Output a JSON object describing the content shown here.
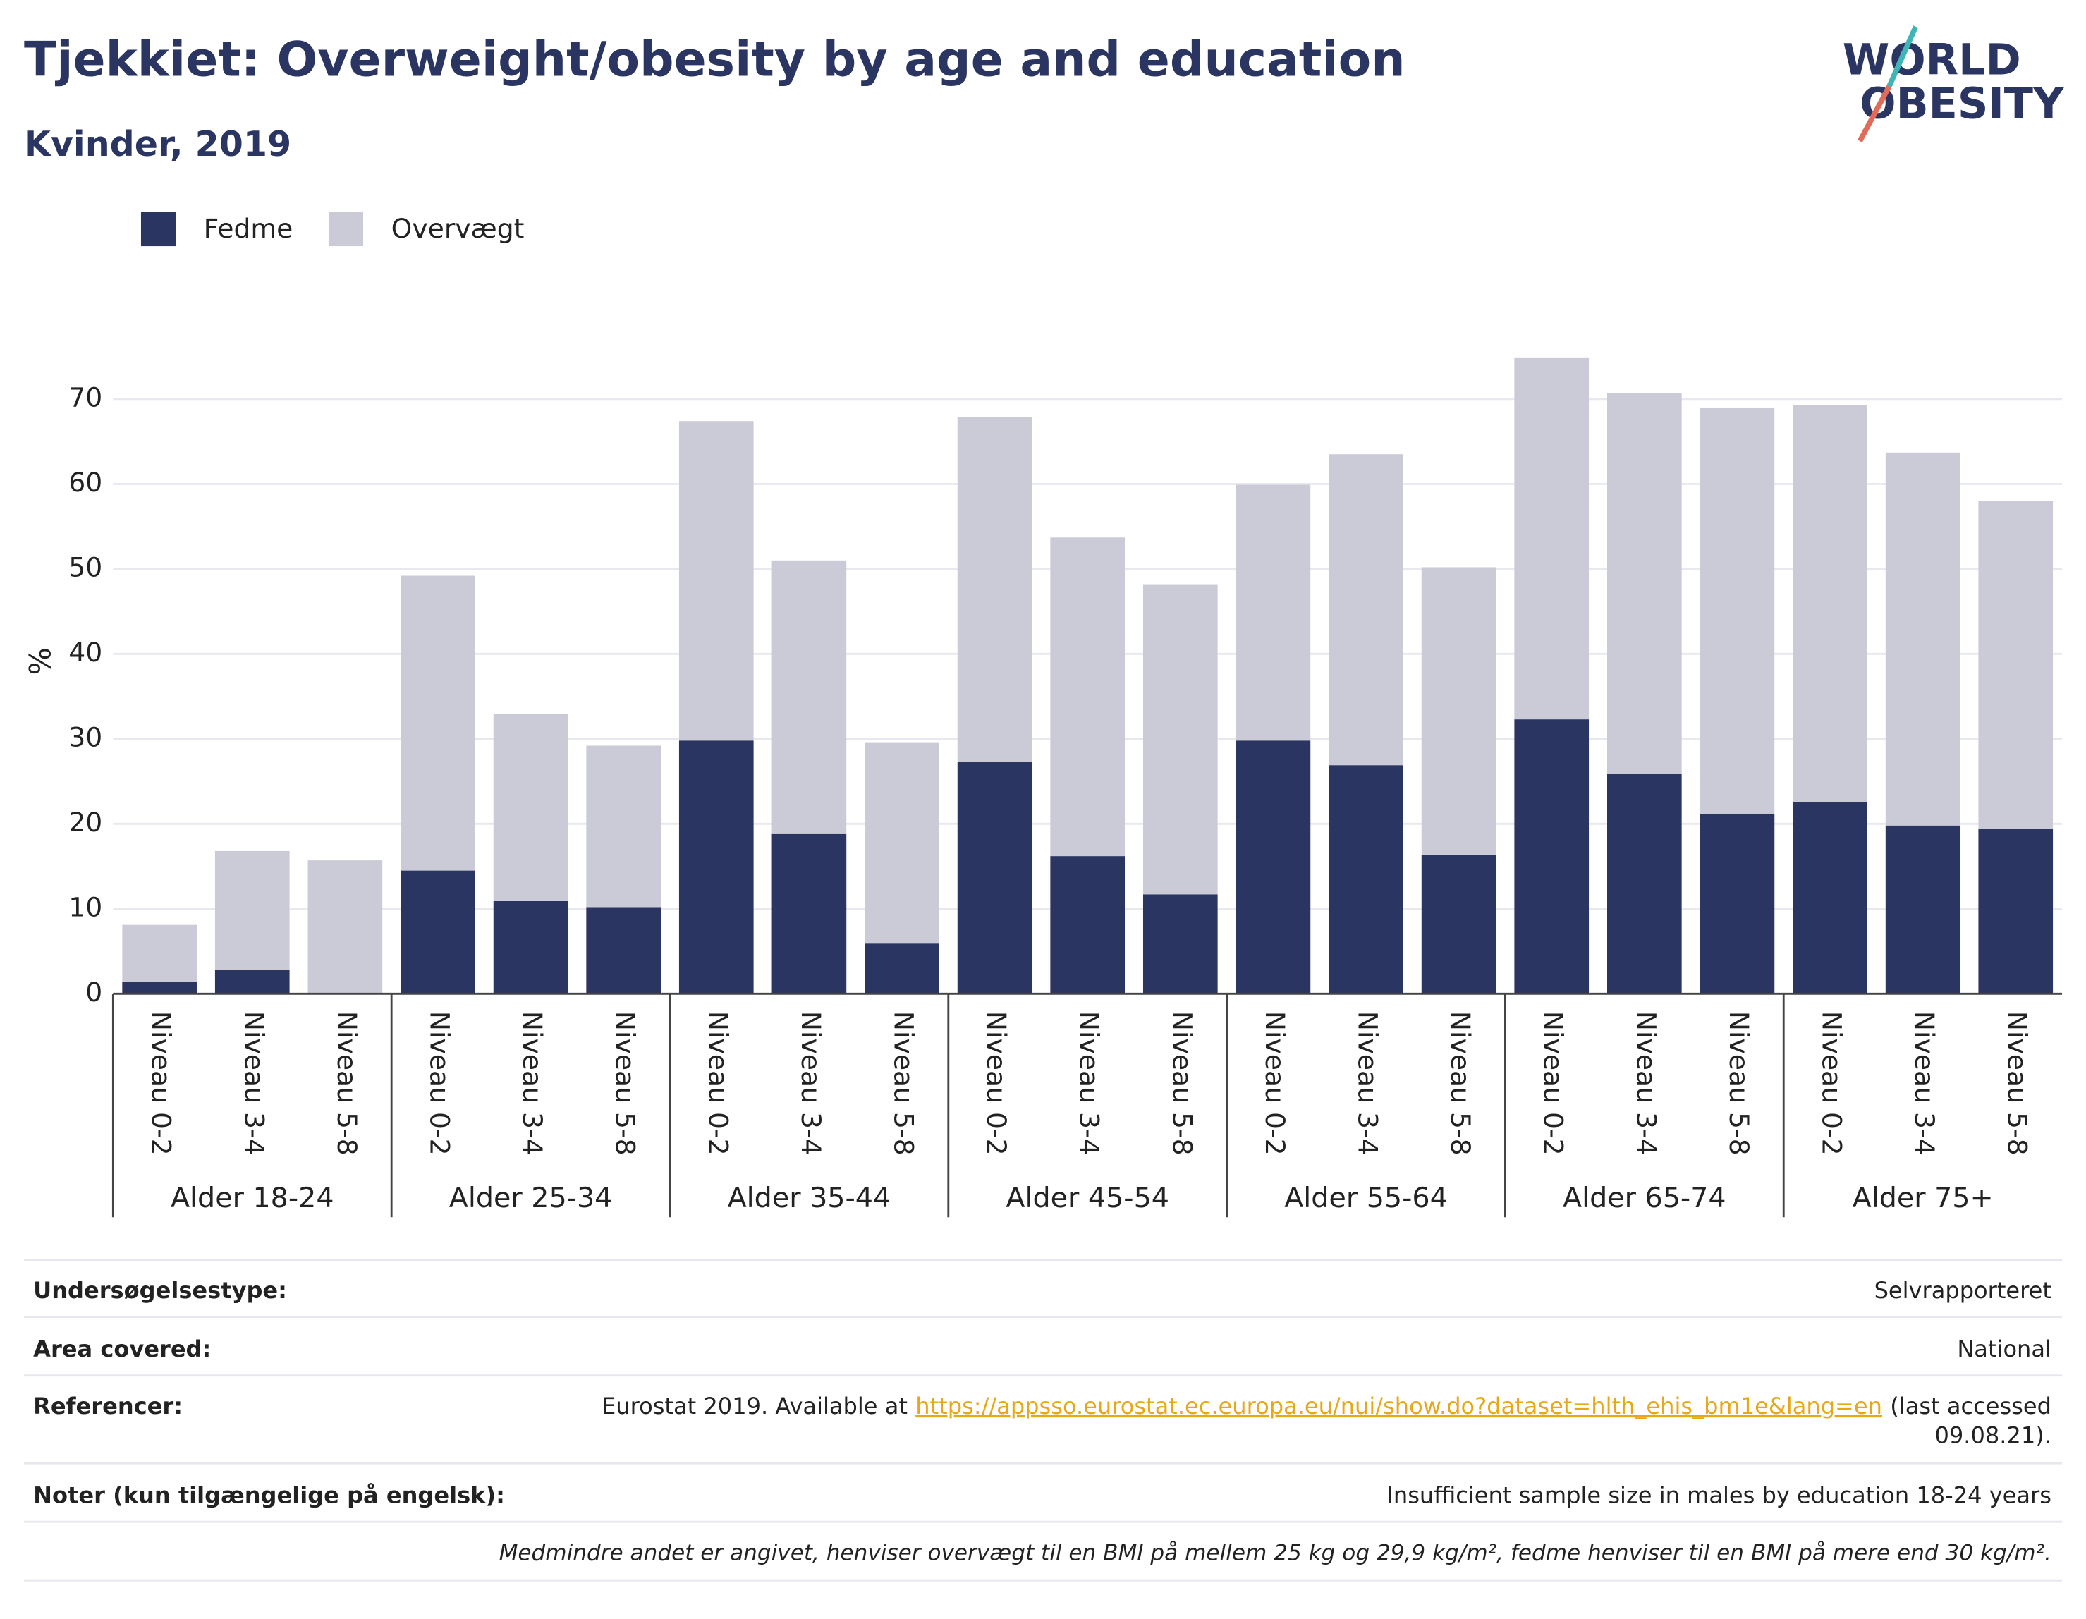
{
  "chart_data": {
    "type": "stacked_bar",
    "title": "Tjekkiet: Overweight/obesity by age and education",
    "subtitle": "Kvinder, 2019",
    "logo": [
      "WORLD",
      "OBESITY"
    ],
    "y_label": "%",
    "groups": [
      "Alder 18-24",
      "Alder 25-34",
      "Alder 35-44",
      "Alder 45-54",
      "Alder 55-64",
      "Alder 65-74",
      "Alder 75+"
    ],
    "categories": [
      "Niveau 0-2",
      "Niveau 3-4",
      "Niveau 5-8",
      "Niveau 0-2",
      "Niveau 3-4",
      "Niveau 5-8",
      "Niveau 0-2",
      "Niveau 3-4",
      "Niveau 5-8",
      "Niveau 0-2",
      "Niveau 3-4",
      "Niveau 5-8",
      "Niveau 0-2",
      "Niveau 3-4",
      "Niveau 5-8",
      "Niveau 0-2",
      "Niveau 3-4",
      "Niveau 5-8",
      "Niveau 0-2",
      "Niveau 3-4",
      "Niveau 5-8"
    ],
    "series": [
      {
        "name": "Fedme",
        "color": "#2b3562",
        "values": [
          1.4,
          2.8,
          0,
          14.5,
          10.9,
          10.2,
          29.8,
          18.8,
          5.9,
          27.3,
          16.2,
          11.7,
          29.8,
          26.9,
          16.3,
          32.3,
          25.9,
          21.2,
          22.6,
          19.8,
          19.4
        ]
      },
      {
        "name": "Overvægt",
        "color": "#cacbd7",
        "values": [
          6.7,
          14.0,
          15.7,
          34.7,
          22.0,
          19.0,
          37.6,
          32.2,
          23.7,
          40.6,
          37.5,
          36.5,
          30.1,
          36.6,
          33.9,
          42.6,
          44.8,
          47.8,
          46.7,
          43.9,
          38.6
        ]
      }
    ],
    "ylim": [
      0,
      75
    ],
    "yticks": [
      0,
      10,
      20,
      30,
      40,
      50,
      60,
      70
    ],
    "grid": true,
    "legend": "top-left"
  },
  "footer": {
    "rows": [
      {
        "label": "Undersøgelsestype:",
        "value": "Selvrapporteret"
      },
      {
        "label": "Area covered:",
        "value": "National"
      },
      {
        "label": "Referencer:",
        "value": "Eurostat 2019. Available at",
        "link": "https://appsso.eurostat.ec.europa.eu/nui/show.do?dataset=hlth_ehis_bm1e&lang=en",
        "after": [
          "(last accessed",
          "09.08.21)."
        ]
      },
      {
        "label": "Noter (kun tilgængelige på engelsk):",
        "value": "Insufficient sample size in males by education 18-24 years"
      }
    ],
    "note": "Medmindre andet er angivet, henviser overvægt til en BMI på mellem 25 kg og 29,9 kg/m², fedme henviser til en BMI på mere end 30 kg/m²."
  }
}
